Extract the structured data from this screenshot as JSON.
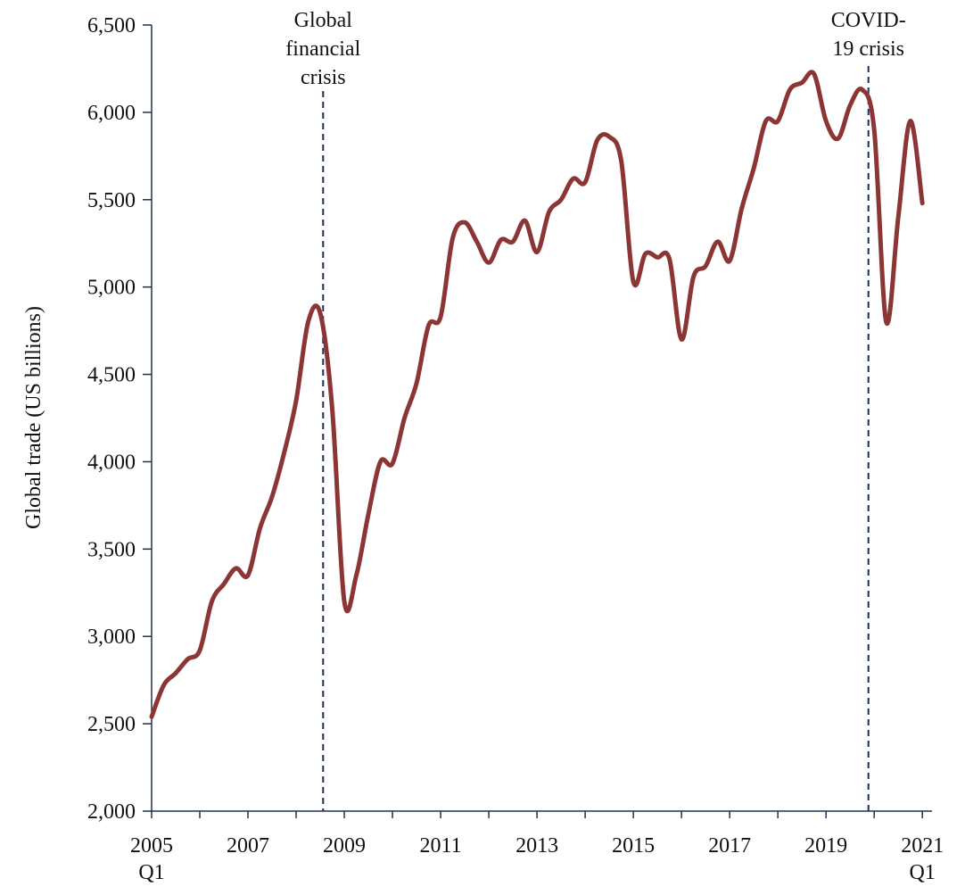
{
  "chart_data": {
    "type": "line",
    "y_label": "Global trade  (US billions)",
    "x": [
      2005,
      2005.25,
      2005.5,
      2005.75,
      2006,
      2006.25,
      2006.5,
      2006.75,
      2007,
      2007.25,
      2007.5,
      2007.75,
      2008,
      2008.25,
      2008.5,
      2008.75,
      2009,
      2009.25,
      2009.5,
      2009.75,
      2010,
      2010.25,
      2010.5,
      2010.75,
      2011,
      2011.25,
      2011.5,
      2011.75,
      2012,
      2012.25,
      2012.5,
      2012.75,
      2013,
      2013.25,
      2013.5,
      2013.75,
      2014,
      2014.25,
      2014.5,
      2014.75,
      2015,
      2015.25,
      2015.5,
      2015.75,
      2016,
      2016.25,
      2016.5,
      2016.75,
      2017,
      2017.25,
      2017.5,
      2017.75,
      2018,
      2018.25,
      2018.5,
      2018.75,
      2019,
      2019.25,
      2019.5,
      2019.75,
      2020,
      2020.25,
      2020.5,
      2020.75,
      2021
    ],
    "series": [
      {
        "name": "Global trade",
        "color": "#8b3535",
        "values": [
          2540,
          2720,
          2790,
          2870,
          2920,
          3200,
          3300,
          3390,
          3350,
          3620,
          3800,
          4050,
          4350,
          4800,
          4850,
          4300,
          3200,
          3350,
          3700,
          4000,
          3990,
          4250,
          4450,
          4780,
          4830,
          5280,
          5370,
          5260,
          5140,
          5270,
          5260,
          5380,
          5200,
          5430,
          5500,
          5620,
          5600,
          5840,
          5860,
          5720,
          5030,
          5190,
          5170,
          5160,
          4700,
          5060,
          5120,
          5260,
          5150,
          5450,
          5680,
          5950,
          5950,
          6130,
          6170,
          6220,
          5950,
          5850,
          6040,
          6130,
          5900,
          4800,
          5400,
          5950,
          5480
        ]
      }
    ],
    "xlim": [
      2005,
      2021.2
    ],
    "xticks": [
      {
        "value": 2005,
        "label": "2005 Q1"
      },
      2007,
      2009,
      2011,
      2013,
      2015,
      2017,
      2019,
      {
        "value": 2021,
        "label": "2021 Q1"
      }
    ],
    "xminor_ticks": [
      2006,
      2008,
      2010,
      2012,
      2014,
      2016,
      2018,
      2020
    ],
    "ylim": [
      2000,
      6500
    ],
    "yticks": [
      {
        "value": 2000,
        "label": "2,000"
      },
      {
        "value": 2500,
        "label": "2,500"
      },
      {
        "value": 3000,
        "label": "3,000"
      },
      {
        "value": 3500,
        "label": "3,500"
      },
      {
        "value": 4000,
        "label": "4,000"
      },
      {
        "value": 4500,
        "label": "4,500"
      },
      {
        "value": 5000,
        "label": "5,000"
      },
      {
        "value": 5500,
        "label": "5,500"
      },
      {
        "value": 6000,
        "label": "6,000"
      },
      {
        "value": 6500,
        "label": "6,500"
      }
    ],
    "annotations": [
      {
        "x": 2008.56,
        "lines": [
          "Global",
          "financial",
          "crisis"
        ]
      },
      {
        "x": 2019.88,
        "lines": [
          "COVID-",
          "19 crisis"
        ]
      }
    ]
  }
}
